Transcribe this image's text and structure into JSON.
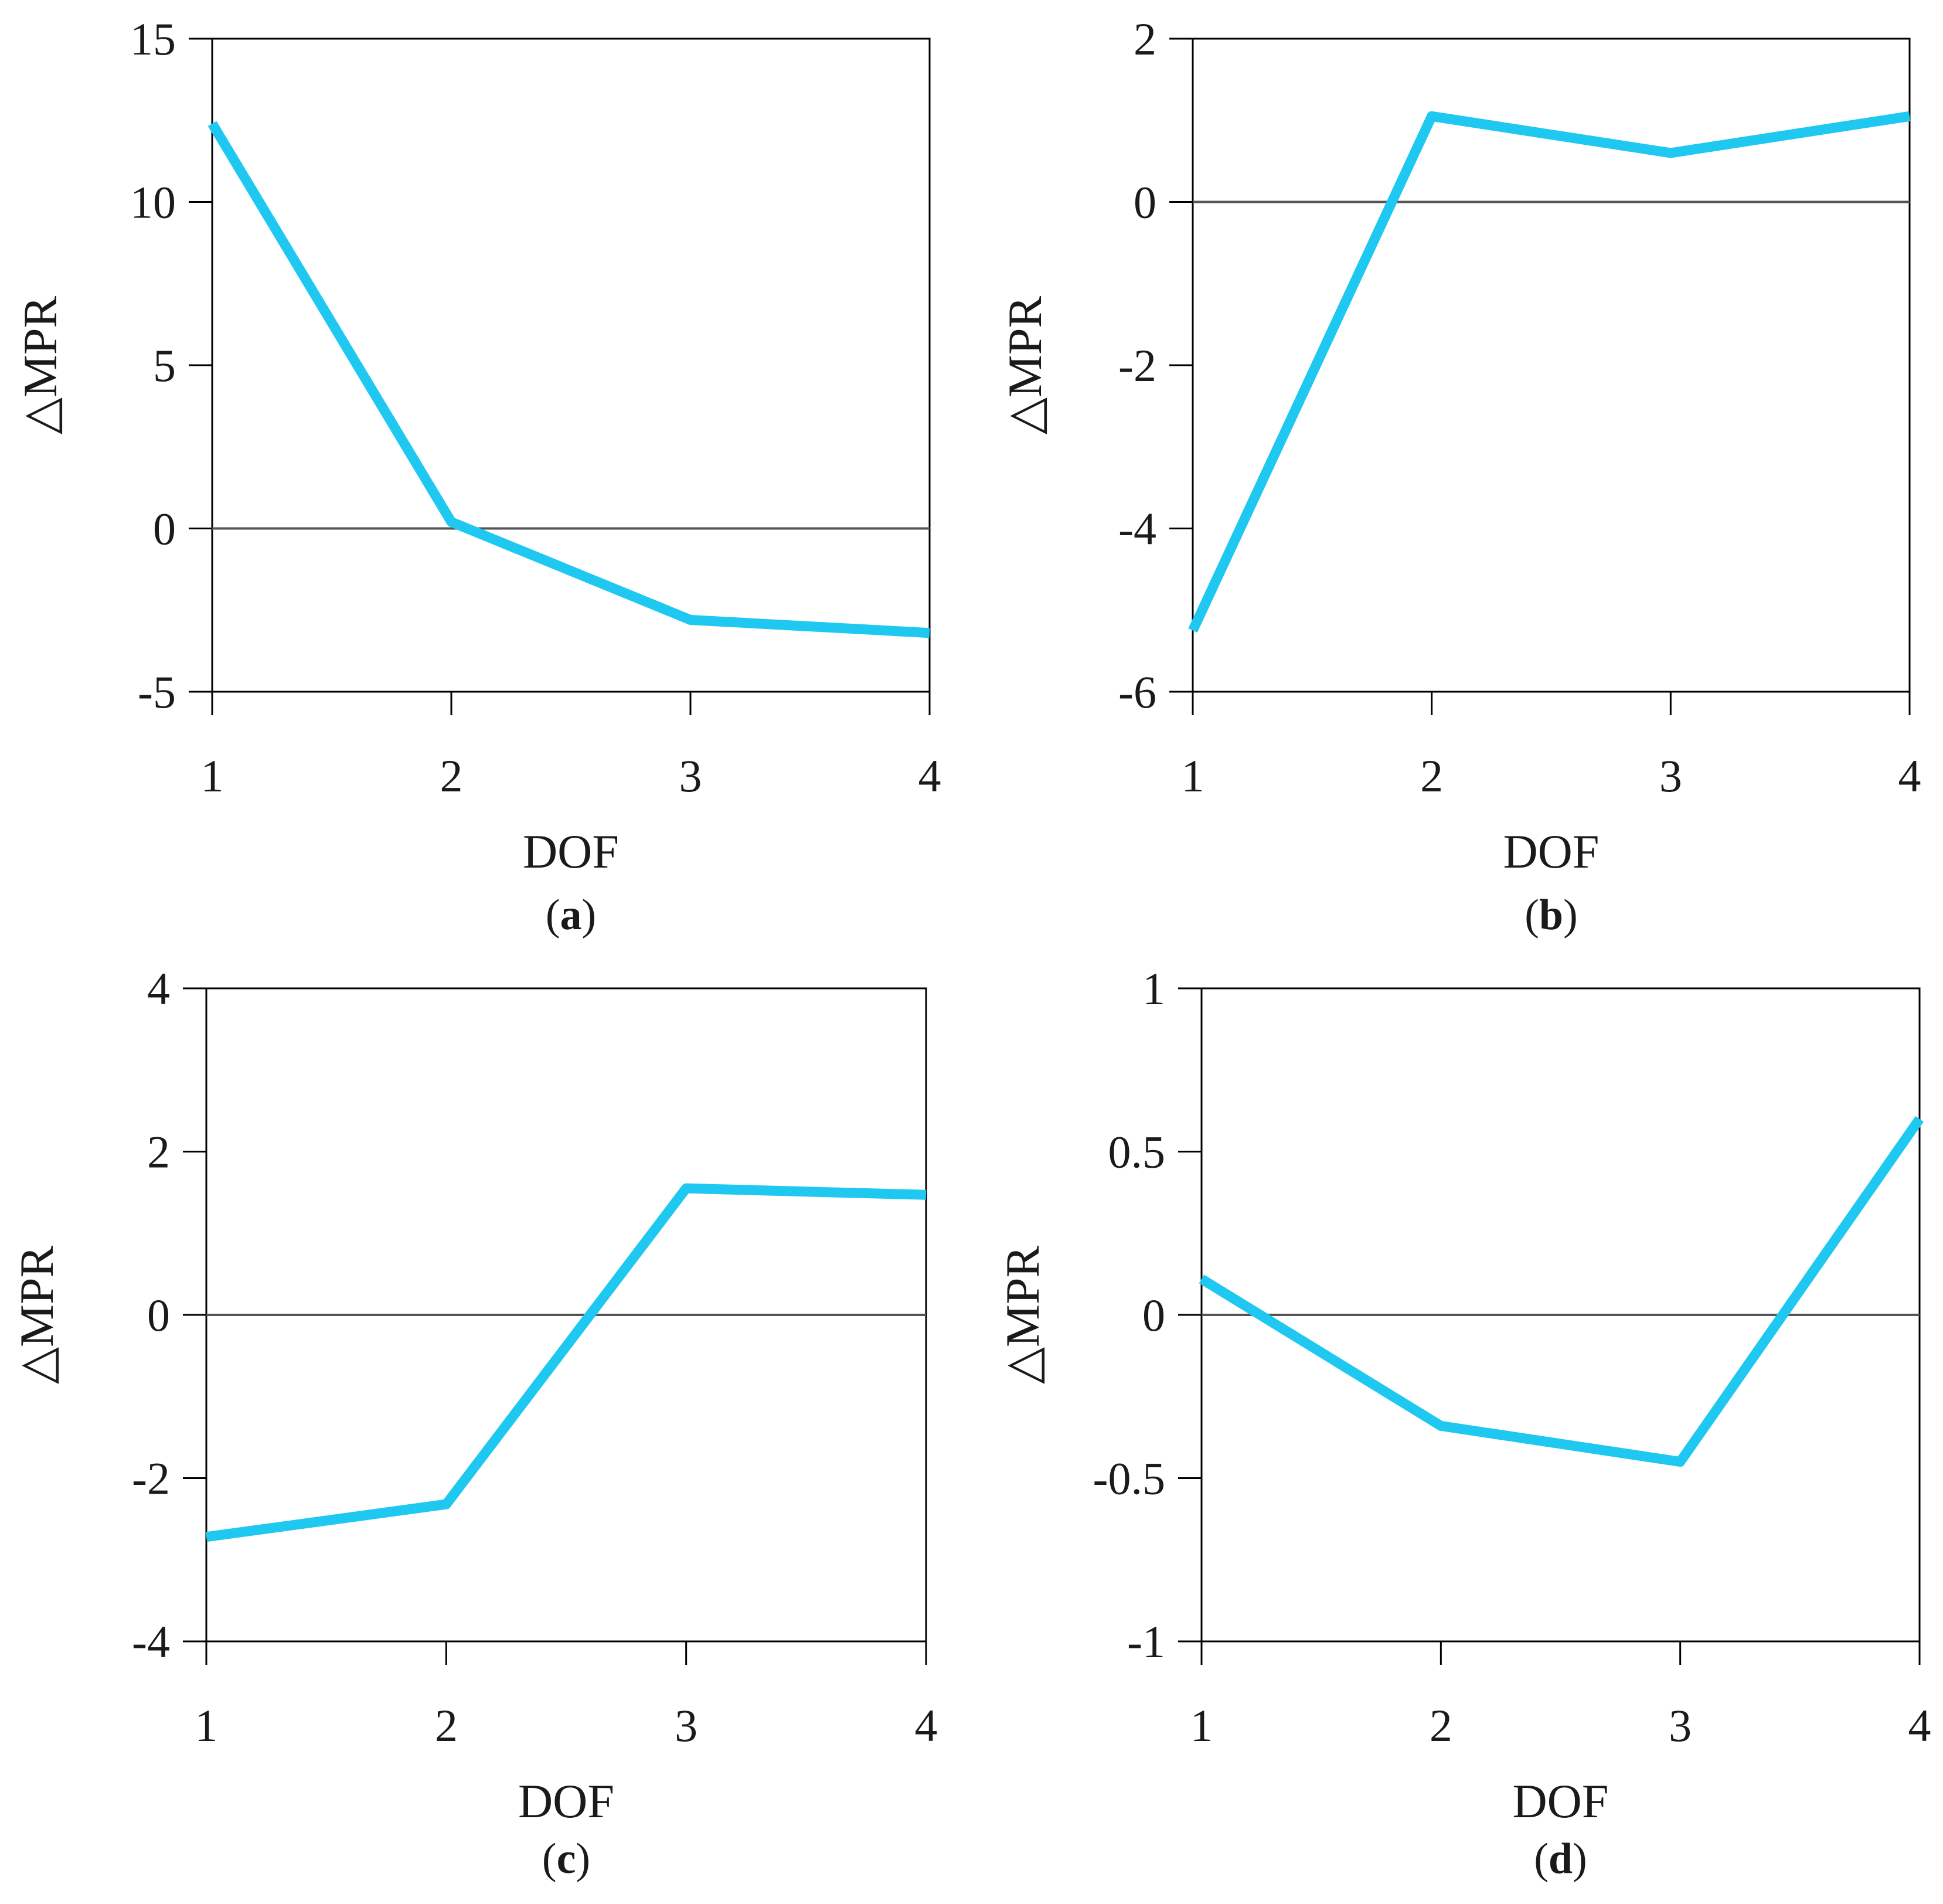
{
  "figure_caption_letters": [
    "a",
    "b",
    "c",
    "d"
  ],
  "line_color": "#1ec8f0",
  "axis_color": "#000000",
  "chart_data": [
    {
      "id": "a",
      "type": "line",
      "panel_label": "a",
      "xlabel": "DOF",
      "ylabel": "△MPR",
      "categories": [
        "1",
        "2",
        "3",
        "4"
      ],
      "values": [
        12.4,
        0.2,
        -2.8,
        -3.2
      ],
      "ylim": [
        -5,
        15
      ],
      "yticks": [
        -5,
        0,
        5,
        10,
        15
      ],
      "ytick_labels": [
        "-5",
        "0",
        "5",
        "10",
        "15"
      ],
      "reference_line": 0,
      "grid": false
    },
    {
      "id": "b",
      "type": "line",
      "panel_label": "b",
      "xlabel": "DOF",
      "ylabel": "△MPR",
      "categories": [
        "1",
        "2",
        "3",
        "4"
      ],
      "values": [
        -5.25,
        1.05,
        0.6,
        1.05
      ],
      "ylim": [
        -6,
        2
      ],
      "yticks": [
        -6,
        -4,
        -2,
        0,
        2
      ],
      "ytick_labels": [
        "-6",
        "-4",
        "-2",
        "0",
        "2"
      ],
      "reference_line": 0,
      "grid": false
    },
    {
      "id": "c",
      "type": "line",
      "panel_label": "c",
      "xlabel": "DOF",
      "ylabel": "△MPR",
      "categories": [
        "1",
        "2",
        "3",
        "4"
      ],
      "values": [
        -2.72,
        -2.32,
        1.55,
        1.47
      ],
      "ylim": [
        -4,
        4
      ],
      "yticks": [
        -4,
        -2,
        0,
        2,
        4
      ],
      "ytick_labels": [
        "-4",
        "-2",
        "0",
        "2",
        "4"
      ],
      "reference_line": 0,
      "grid": false
    },
    {
      "id": "d",
      "type": "line",
      "panel_label": "d",
      "xlabel": "DOF",
      "ylabel": "△MPR",
      "categories": [
        "1",
        "2",
        "3",
        "4"
      ],
      "values": [
        0.11,
        -0.34,
        -0.45,
        0.6
      ],
      "ylim": [
        -1,
        1
      ],
      "yticks": [
        -1,
        -0.5,
        0,
        0.5,
        1
      ],
      "ytick_labels": [
        "-1",
        "-0.5",
        "0",
        "0.5",
        "1"
      ],
      "reference_line": 0,
      "grid": false
    }
  ]
}
